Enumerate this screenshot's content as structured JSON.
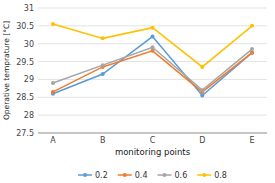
{
  "chart_data": {
    "type": "line",
    "categories": [
      "A",
      "B",
      "C",
      "D",
      "E"
    ],
    "series": [
      {
        "name": "0.2",
        "color": "#5B9BD5",
        "values": [
          28.6,
          29.15,
          30.2,
          28.55,
          29.75
        ]
      },
      {
        "name": "0.4",
        "color": "#ED7D31",
        "values": [
          28.65,
          29.35,
          29.8,
          28.65,
          29.75
        ]
      },
      {
        "name": "0.6",
        "color": "#A5A5A5",
        "values": [
          28.9,
          29.4,
          29.9,
          28.7,
          29.85
        ]
      },
      {
        "name": "0.8",
        "color": "#FFC000",
        "values": [
          30.55,
          30.15,
          30.45,
          29.35,
          30.5
        ]
      }
    ],
    "xlabel": "monitoring points",
    "ylabel": "Operative temprature [°C]",
    "ylim": [
      27.5,
      31
    ],
    "yticks": [
      27.5,
      28,
      28.5,
      29,
      29.5,
      30,
      30.5,
      31
    ],
    "grid": true,
    "legend": "bottom",
    "marker": "circle"
  }
}
